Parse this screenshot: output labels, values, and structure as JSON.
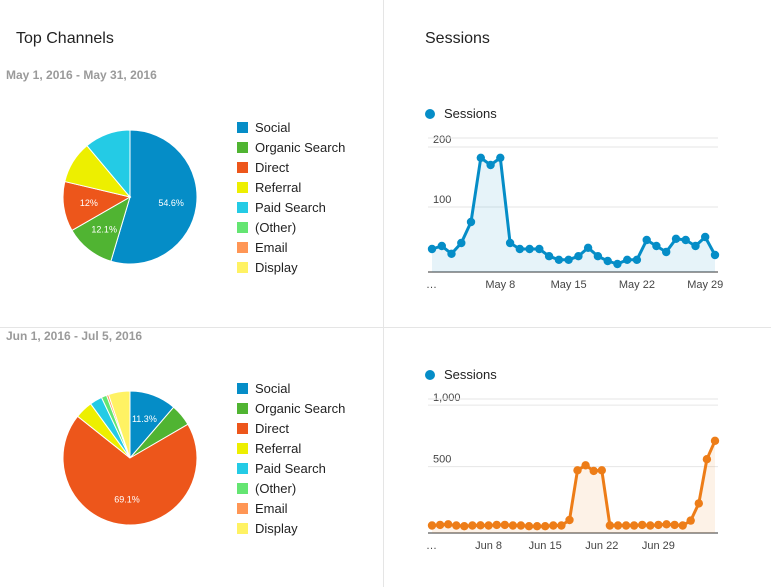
{
  "left_title": "Top Channels",
  "right_title": "Sessions",
  "chart_data": [
    {
      "type": "pie",
      "title": "May 1, 2016 - May 31, 2016",
      "categories": [
        "Social",
        "Organic Search",
        "Direct",
        "Referral",
        "Paid Search",
        "(Other)",
        "Email",
        "Display"
      ],
      "values": [
        54.6,
        12.1,
        12,
        10.2,
        11.1,
        0,
        0,
        0
      ],
      "data_labels": [
        "54.6%",
        "12.1%",
        "12%",
        "",
        "",
        "",
        "",
        ""
      ],
      "colors": [
        "#058dc7",
        "#50b432",
        "#ed561b",
        "#edef00",
        "#24cbe5",
        "#64e572",
        "#ff9655",
        "#fff263"
      ],
      "legend": "right"
    },
    {
      "type": "line",
      "series": [
        {
          "name": "Sessions",
          "color": "#058dc7",
          "values": [
            30,
            35,
            22,
            40,
            75,
            182,
            170,
            182,
            40,
            30,
            30,
            30,
            18,
            12,
            12,
            18,
            32,
            18,
            10,
            5,
            12,
            12,
            45,
            35,
            25,
            47,
            45,
            35,
            50,
            20
          ]
        }
      ],
      "x": [
        1,
        2,
        3,
        4,
        5,
        6,
        7,
        8,
        9,
        10,
        11,
        12,
        13,
        14,
        15,
        16,
        17,
        18,
        19,
        20,
        21,
        22,
        23,
        24,
        25,
        26,
        27,
        28,
        29,
        30
      ],
      "tick_labels": [
        "…",
        "May 8",
        "May 15",
        "May 22",
        "May 29"
      ],
      "tick_x": [
        1.5,
        8,
        15,
        22,
        29
      ],
      "yticks": [
        100,
        200
      ],
      "ytick_labels": [
        "100",
        "200"
      ],
      "ylim": [
        0,
        215
      ],
      "grid": true,
      "legend": "top-left"
    },
    {
      "type": "pie",
      "title": "Jun 1, 2016 - Jul 5, 2016",
      "categories": [
        "Social",
        "Organic Search",
        "Direct",
        "Referral",
        "Paid Search",
        "(Other)",
        "Email",
        "Display"
      ],
      "values": [
        11.3,
        5.3,
        69.1,
        4.3,
        3.0,
        1.3,
        0.5,
        5.2
      ],
      "data_labels": [
        "11.3%",
        "",
        "69.1%",
        "",
        "",
        "",
        "",
        ""
      ],
      "colors": [
        "#058dc7",
        "#50b432",
        "#ed561b",
        "#edef00",
        "#24cbe5",
        "#64e572",
        "#ff9655",
        "#fff263"
      ],
      "legend": "right"
    },
    {
      "type": "line",
      "series": [
        {
          "name": "Sessions",
          "color": "#ed7d18",
          "values": [
            20,
            25,
            30,
            20,
            15,
            20,
            22,
            20,
            25,
            25,
            20,
            20,
            15,
            15,
            15,
            20,
            20,
            65,
            470,
            510,
            465,
            470,
            20,
            20,
            20,
            20,
            25,
            20,
            25,
            30,
            25,
            20,
            60,
            200,
            560,
            710
          ]
        }
      ],
      "x": [
        1,
        2,
        3,
        4,
        5,
        6,
        7,
        8,
        9,
        10,
        11,
        12,
        13,
        14,
        15,
        16,
        17,
        18,
        19,
        20,
        21,
        22,
        23,
        24,
        25,
        26,
        27,
        28,
        29,
        30,
        31,
        32,
        33,
        34,
        35,
        36
      ],
      "tick_labels": [
        "…",
        "Jun 8",
        "Jun 15",
        "Jun 22",
        "Jun 29"
      ],
      "tick_x": [
        1.5,
        8,
        15,
        22,
        29
      ],
      "yticks": [
        500,
        1000
      ],
      "ytick_labels": [
        "500",
        "1,000"
      ],
      "ylim": [
        0,
        1050
      ],
      "grid": true,
      "legend": "top-left"
    }
  ]
}
